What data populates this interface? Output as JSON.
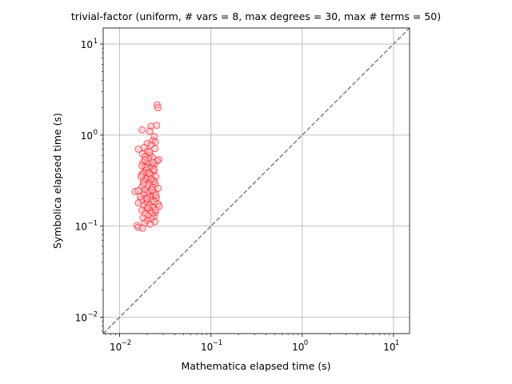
{
  "chart_data": {
    "type": "scatter",
    "title": "trivial-factor (uniform, # vars = 8, max degrees = 30, max # terms = 50)",
    "xlabel": "Mathematica elapsed time (s)",
    "ylabel": "Symbolica elapsed time (s)",
    "xscale": "log",
    "yscale": "log",
    "xlim": [
      0.0066,
      15
    ],
    "ylim": [
      0.0066,
      15
    ],
    "grid": true,
    "x_ticks": [
      {
        "base": "10",
        "exp": "−2",
        "value": 0.01
      },
      {
        "base": "10",
        "exp": "−1",
        "value": 0.1
      },
      {
        "base": "10",
        "exp": "0",
        "value": 1
      },
      {
        "base": "10",
        "exp": "1",
        "value": 10
      }
    ],
    "y_ticks": [
      {
        "base": "10",
        "exp": "−2",
        "value": 0.01
      },
      {
        "base": "10",
        "exp": "−1",
        "value": 0.1
      },
      {
        "base": "10",
        "exp": "0",
        "value": 1
      },
      {
        "base": "10",
        "exp": "1",
        "value": 10
      }
    ],
    "reference_line": {
      "style": "dashed",
      "color": "#808080",
      "equation": "y = x"
    },
    "marker": {
      "face": "#ffb3c0",
      "edge": "#ff2020",
      "alpha": 0.5
    },
    "points": [
      {
        "x": 0.0257,
        "y": 2.15
      },
      {
        "x": 0.0262,
        "y": 2.0
      },
      {
        "x": 0.022,
        "y": 1.25
      },
      {
        "x": 0.0254,
        "y": 1.28
      },
      {
        "x": 0.0176,
        "y": 1.14
      },
      {
        "x": 0.0213,
        "y": 1.1
      },
      {
        "x": 0.024,
        "y": 0.96
      },
      {
        "x": 0.023,
        "y": 0.87
      },
      {
        "x": 0.0245,
        "y": 0.84
      },
      {
        "x": 0.02,
        "y": 0.81
      },
      {
        "x": 0.0221,
        "y": 0.78
      },
      {
        "x": 0.0186,
        "y": 0.73
      },
      {
        "x": 0.016,
        "y": 0.7
      },
      {
        "x": 0.0243,
        "y": 0.71
      },
      {
        "x": 0.02,
        "y": 0.66
      },
      {
        "x": 0.0178,
        "y": 0.62
      },
      {
        "x": 0.0215,
        "y": 0.6
      },
      {
        "x": 0.019,
        "y": 0.58
      },
      {
        "x": 0.0228,
        "y": 0.57
      },
      {
        "x": 0.0207,
        "y": 0.55
      },
      {
        "x": 0.0268,
        "y": 0.54
      },
      {
        "x": 0.0257,
        "y": 0.52
      },
      {
        "x": 0.018,
        "y": 0.5
      },
      {
        "x": 0.02,
        "y": 0.49
      },
      {
        "x": 0.024,
        "y": 0.47
      },
      {
        "x": 0.0225,
        "y": 0.46
      },
      {
        "x": 0.0188,
        "y": 0.45
      },
      {
        "x": 0.0213,
        "y": 0.43
      },
      {
        "x": 0.0197,
        "y": 0.41
      },
      {
        "x": 0.0235,
        "y": 0.4
      },
      {
        "x": 0.0182,
        "y": 0.385
      },
      {
        "x": 0.0175,
        "y": 0.37
      },
      {
        "x": 0.022,
        "y": 0.36
      },
      {
        "x": 0.0248,
        "y": 0.35
      },
      {
        "x": 0.0205,
        "y": 0.34
      },
      {
        "x": 0.0193,
        "y": 0.33
      },
      {
        "x": 0.023,
        "y": 0.32
      },
      {
        "x": 0.0182,
        "y": 0.31
      },
      {
        "x": 0.0212,
        "y": 0.3
      },
      {
        "x": 0.0245,
        "y": 0.29
      },
      {
        "x": 0.02,
        "y": 0.28
      },
      {
        "x": 0.0176,
        "y": 0.27
      },
      {
        "x": 0.0228,
        "y": 0.265
      },
      {
        "x": 0.0263,
        "y": 0.26
      },
      {
        "x": 0.019,
        "y": 0.25
      },
      {
        "x": 0.0147,
        "y": 0.24
      },
      {
        "x": 0.016,
        "y": 0.245
      },
      {
        "x": 0.0216,
        "y": 0.24
      },
      {
        "x": 0.024,
        "y": 0.235
      },
      {
        "x": 0.02,
        "y": 0.23
      },
      {
        "x": 0.0183,
        "y": 0.22
      },
      {
        "x": 0.0232,
        "y": 0.215
      },
      {
        "x": 0.021,
        "y": 0.21
      },
      {
        "x": 0.0252,
        "y": 0.205
      },
      {
        "x": 0.0192,
        "y": 0.2
      },
      {
        "x": 0.0172,
        "y": 0.195
      },
      {
        "x": 0.0222,
        "y": 0.19
      },
      {
        "x": 0.0241,
        "y": 0.185
      },
      {
        "x": 0.02,
        "y": 0.18
      },
      {
        "x": 0.016,
        "y": 0.18
      },
      {
        "x": 0.0263,
        "y": 0.175
      },
      {
        "x": 0.0212,
        "y": 0.17
      },
      {
        "x": 0.0185,
        "y": 0.165
      },
      {
        "x": 0.023,
        "y": 0.16
      },
      {
        "x": 0.027,
        "y": 0.165
      },
      {
        "x": 0.0198,
        "y": 0.155
      },
      {
        "x": 0.0175,
        "y": 0.15
      },
      {
        "x": 0.0218,
        "y": 0.147
      },
      {
        "x": 0.0245,
        "y": 0.14
      },
      {
        "x": 0.019,
        "y": 0.137
      },
      {
        "x": 0.0207,
        "y": 0.13
      },
      {
        "x": 0.0236,
        "y": 0.127
      },
      {
        "x": 0.018,
        "y": 0.123
      },
      {
        "x": 0.0222,
        "y": 0.12
      },
      {
        "x": 0.02,
        "y": 0.115
      },
      {
        "x": 0.0243,
        "y": 0.112
      },
      {
        "x": 0.0188,
        "y": 0.108
      },
      {
        "x": 0.0215,
        "y": 0.105
      },
      {
        "x": 0.0155,
        "y": 0.102
      },
      {
        "x": 0.016,
        "y": 0.097
      },
      {
        "x": 0.0178,
        "y": 0.095
      },
      {
        "x": 0.02,
        "y": 0.2
      },
      {
        "x": 0.0225,
        "y": 0.25
      },
      {
        "x": 0.0183,
        "y": 0.29
      },
      {
        "x": 0.0237,
        "y": 0.31
      },
      {
        "x": 0.021,
        "y": 0.38
      },
      {
        "x": 0.0195,
        "y": 0.44
      },
      {
        "x": 0.0232,
        "y": 0.5
      },
      {
        "x": 0.0172,
        "y": 0.35
      },
      {
        "x": 0.025,
        "y": 0.22
      },
      {
        "x": 0.0205,
        "y": 0.16
      },
      {
        "x": 0.0228,
        "y": 0.14
      },
      {
        "x": 0.0168,
        "y": 0.21
      },
      {
        "x": 0.0212,
        "y": 0.65
      },
      {
        "x": 0.0238,
        "y": 0.42
      },
      {
        "x": 0.019,
        "y": 0.53
      },
      {
        "x": 0.022,
        "y": 0.33
      },
      {
        "x": 0.0175,
        "y": 0.46
      },
      {
        "x": 0.0247,
        "y": 0.15
      }
    ]
  }
}
